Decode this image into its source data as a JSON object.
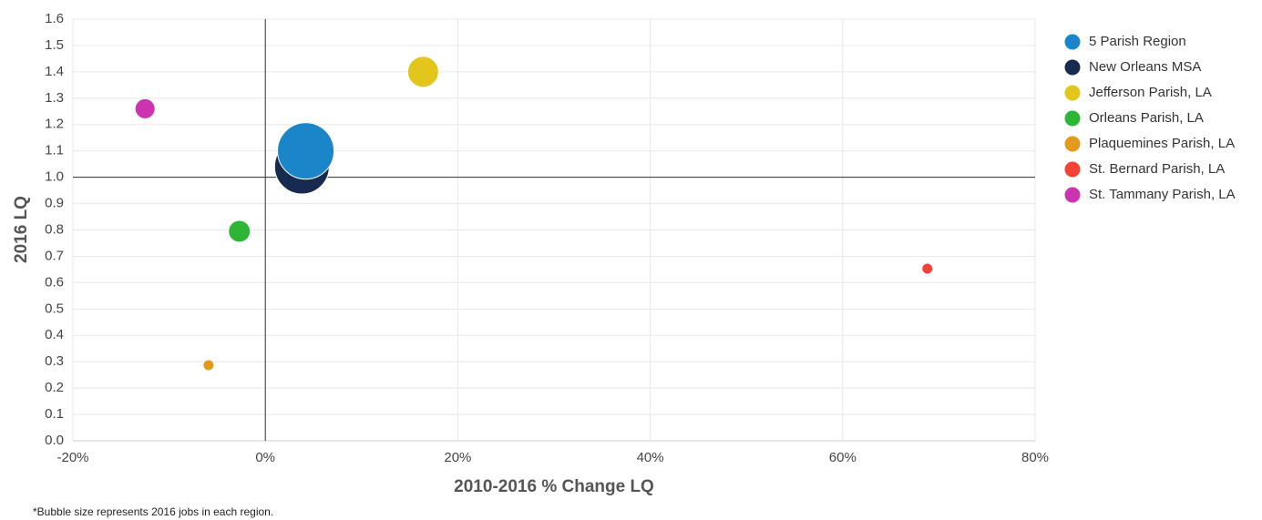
{
  "chart_data": {
    "type": "bubble",
    "xlabel": "2010-2016 % Change LQ",
    "ylabel": "2016 LQ",
    "footnote": "*Bubble size represents 2016 jobs in each region.",
    "xlim": [
      -20,
      80
    ],
    "ylim": [
      0,
      1.6
    ],
    "xticks": [
      {
        "value": -20,
        "label": "-20%"
      },
      {
        "value": 0,
        "label": "0%"
      },
      {
        "value": 20,
        "label": "20%"
      },
      {
        "value": 40,
        "label": "40%"
      },
      {
        "value": 60,
        "label": "60%"
      },
      {
        "value": 80,
        "label": "80%"
      }
    ],
    "yticks": [
      {
        "value": 0,
        "label": "0.0"
      },
      0.1,
      0.2,
      0.3,
      0.4,
      0.5,
      0.6,
      0.7,
      0.8,
      0.9,
      {
        "value": 1,
        "label": "1.0"
      },
      1.1,
      1.2,
      1.3,
      1.4,
      1.5,
      1.6
    ],
    "grid": true,
    "xref": 0,
    "yref": 1,
    "legend": "right",
    "series": [
      {
        "name": "5 Parish Region",
        "color": "#1a85c8",
        "x": 4.2,
        "y": 1.1,
        "size": 961
      },
      {
        "name": "New Orleans MSA",
        "color": "#172a4f",
        "x": 3.8,
        "y": 1.04,
        "size": 900
      },
      {
        "name": "Jefferson Parish, LA",
        "color": "#e3c61c",
        "x": 16.4,
        "y": 1.4,
        "size": 289
      },
      {
        "name": "Orleans Parish, LA",
        "color": "#2db535",
        "x": -2.7,
        "y": 0.795,
        "size": 144
      },
      {
        "name": "Plaquemines Parish, LA",
        "color": "#e29a1c",
        "x": -5.9,
        "y": 0.287,
        "size": 36
      },
      {
        "name": "St. Bernard Parish, LA",
        "color": "#f44336",
        "x": 68.8,
        "y": 0.653,
        "size": 36
      },
      {
        "name": "St. Tammany Parish, LA",
        "color": "#cc33b0",
        "x": -12.5,
        "y": 1.26,
        "size": 121
      }
    ]
  }
}
